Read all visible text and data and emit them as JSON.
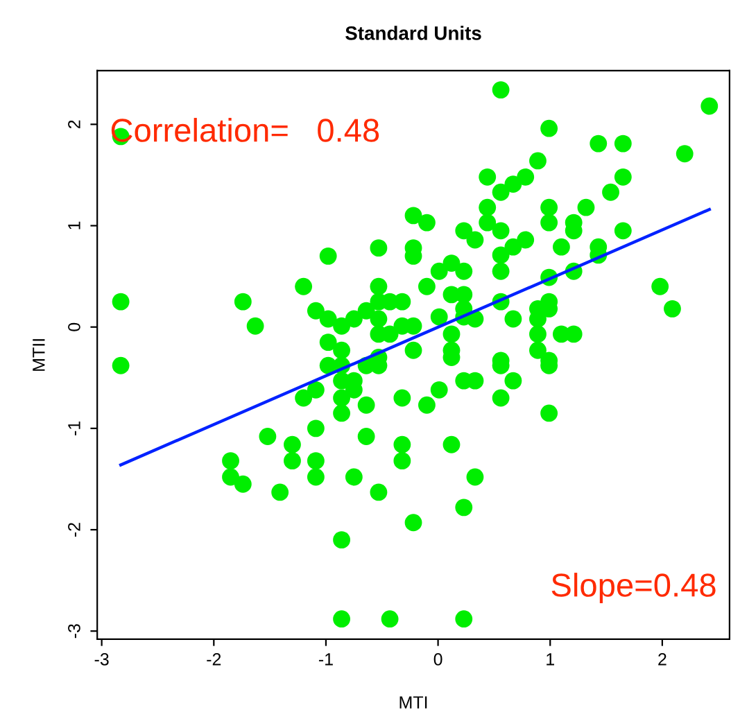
{
  "chart_data": {
    "type": "scatter",
    "title": "Standard Units",
    "xlabel": "MTI",
    "ylabel": "MTII",
    "xlim": [
      -3.04,
      2.6
    ],
    "ylim": [
      -3.08,
      2.53
    ],
    "xticks": [
      -3,
      -2,
      -1,
      0,
      1,
      2
    ],
    "yticks": [
      -3,
      -2,
      -1,
      0,
      1,
      2
    ],
    "grid": false,
    "legend": false,
    "annotations": [
      "Correlation=   0.48",
      "Slope=0.48"
    ],
    "series": [
      {
        "marker": "circle",
        "color": "#00ee00",
        "x": [
          -2.83,
          -2.83,
          -2.83,
          -1.74,
          -1.63,
          -1.85,
          -1.85,
          -1.74,
          -1.52,
          -1.41,
          -1.3,
          -1.3,
          -1.09,
          -1.09,
          -1.09,
          -0.86,
          -0.86,
          -0.75,
          -0.64,
          -0.53,
          -0.43,
          -0.32,
          -0.32,
          -0.22,
          -1.2,
          -1.09,
          -0.86,
          -0.86,
          -0.64,
          -0.32,
          -0.75,
          -0.75,
          -0.86,
          -0.98,
          -0.86,
          -0.64,
          -0.53,
          -0.53,
          -0.98,
          -0.86,
          -0.53,
          -0.43,
          -0.22,
          -0.98,
          -1.2,
          -0.53,
          -1.09,
          -0.98,
          -0.86,
          -0.75,
          -0.64,
          -0.53,
          -0.53,
          -0.43,
          -0.32,
          -0.53,
          -0.32,
          -0.22,
          -0.22,
          -0.22,
          -0.22,
          0.56,
          2.42,
          0.99,
          1.43,
          1.65,
          2.2,
          0.89,
          0.44,
          0.67,
          0.78,
          0.56,
          1.65,
          1.54,
          0.44,
          0.99,
          1.32,
          0.44,
          0.56,
          0.99,
          1.21,
          1.21,
          1.65,
          -0.1,
          0.23,
          0.33,
          0.78,
          0.67,
          0.56,
          1.1,
          1.43,
          1.43,
          0.12,
          0.01,
          0.23,
          0.56,
          0.99,
          1.21,
          -0.1,
          0.12,
          0.23,
          0.56,
          0.99,
          0.89,
          0.99,
          0.23,
          0.01,
          0.23,
          0.33,
          0.67,
          0.89,
          0.12,
          0.89,
          1.1,
          1.21,
          0.12,
          0.89,
          0.56,
          0.99,
          0.12,
          0.56,
          0.99,
          0.23,
          0.33,
          0.67,
          0.56,
          0.99,
          0.01,
          -0.1,
          0.12,
          0.33,
          0.23,
          0.23,
          1.98,
          2.09
        ],
        "values": [
          1.88,
          0.25,
          -0.38,
          0.25,
          0.01,
          -1.32,
          -1.48,
          -1.55,
          -1.08,
          -1.63,
          -1.16,
          -1.32,
          -1.0,
          -1.32,
          -1.48,
          -2.1,
          -2.88,
          -1.48,
          -1.08,
          -1.63,
          -2.88,
          -1.16,
          -1.32,
          -1.93,
          -0.7,
          -0.62,
          -0.7,
          -0.85,
          -0.77,
          -0.7,
          -0.53,
          -0.62,
          -0.53,
          -0.38,
          -0.38,
          -0.38,
          -0.38,
          -0.3,
          -0.15,
          -0.23,
          -0.07,
          -0.07,
          -0.23,
          0.7,
          0.4,
          0.78,
          0.16,
          0.08,
          0.01,
          0.08,
          0.16,
          0.25,
          0.4,
          0.25,
          0.25,
          0.08,
          0.01,
          0.01,
          1.1,
          0.78,
          0.7,
          2.34,
          2.18,
          1.96,
          1.81,
          1.81,
          1.71,
          1.64,
          1.48,
          1.41,
          1.48,
          1.33,
          1.48,
          1.33,
          1.18,
          1.18,
          1.18,
          1.03,
          0.95,
          1.03,
          1.03,
          0.95,
          0.95,
          1.03,
          0.95,
          0.86,
          0.86,
          0.79,
          0.71,
          0.79,
          0.79,
          0.71,
          0.63,
          0.55,
          0.55,
          0.55,
          0.49,
          0.55,
          0.4,
          0.32,
          0.32,
          0.25,
          0.25,
          0.18,
          0.18,
          0.18,
          0.1,
          0.1,
          0.08,
          0.08,
          0.08,
          -0.07,
          -0.07,
          -0.07,
          -0.07,
          -0.23,
          -0.23,
          -0.33,
          -0.33,
          -0.3,
          -0.38,
          -0.38,
          -0.53,
          -0.53,
          -0.53,
          -0.7,
          -0.85,
          -0.62,
          -0.77,
          -1.16,
          -1.48,
          -1.78,
          -2.88,
          0.4,
          0.18
        ]
      },
      {
        "type": "line",
        "color": "#0022ff",
        "line_style": "solid",
        "x": [
          -2.83,
          2.42
        ],
        "values": [
          -1.36,
          1.16
        ]
      }
    ]
  }
}
